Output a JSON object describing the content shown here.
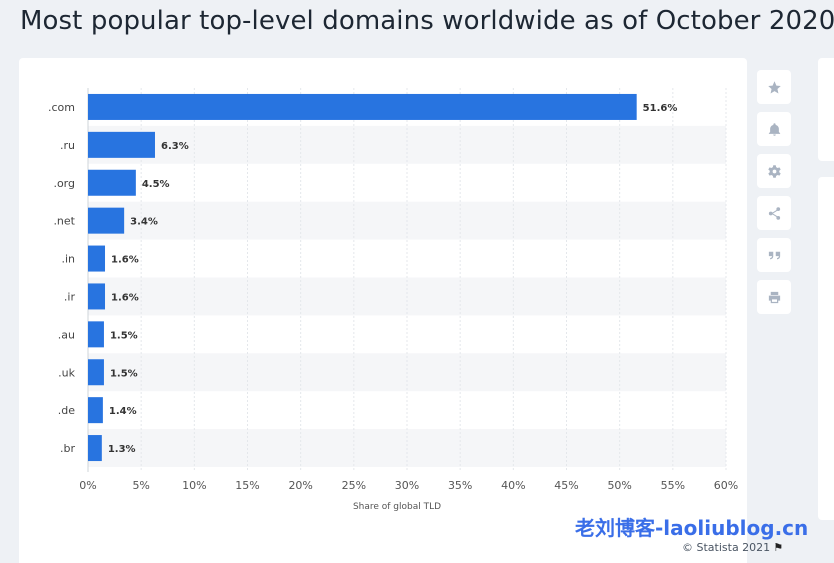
{
  "page": {
    "title": "Most popular top-level domains worldwide as of October 2020"
  },
  "toolbar": {
    "items": [
      {
        "icon": "star-icon"
      },
      {
        "icon": "bell-icon"
      },
      {
        "icon": "gear-icon"
      },
      {
        "icon": "share-icon"
      },
      {
        "icon": "quote-icon"
      },
      {
        "icon": "print-icon"
      }
    ]
  },
  "watermark": "老刘博客-laoliublog.cn",
  "credit": {
    "text": "© Statista 2021",
    "icon": "flag-icon"
  },
  "chart_data": {
    "type": "bar",
    "orientation": "horizontal",
    "categories": [
      ".com",
      ".ru",
      ".org",
      ".net",
      ".in",
      ".ir",
      ".au",
      ".uk",
      ".de",
      ".br"
    ],
    "values": [
      51.6,
      6.3,
      4.5,
      3.4,
      1.6,
      1.6,
      1.5,
      1.5,
      1.4,
      1.3
    ],
    "value_labels": [
      "51.6%",
      "6.3%",
      "4.5%",
      "3.4%",
      "1.6%",
      "1.6%",
      "1.5%",
      "1.5%",
      "1.4%",
      "1.3%"
    ],
    "xlabel": "Share of global TLD",
    "xlim": [
      0,
      60
    ],
    "xticks": [
      0,
      5,
      10,
      15,
      20,
      25,
      30,
      35,
      40,
      45,
      50,
      55,
      60
    ],
    "xtick_labels": [
      "0%",
      "5%",
      "10%",
      "15%",
      "20%",
      "25%",
      "30%",
      "35%",
      "40%",
      "45%",
      "50%",
      "55%",
      "60%"
    ],
    "bar_color": "#2874e0",
    "grid": "vertical",
    "legend": "none"
  }
}
